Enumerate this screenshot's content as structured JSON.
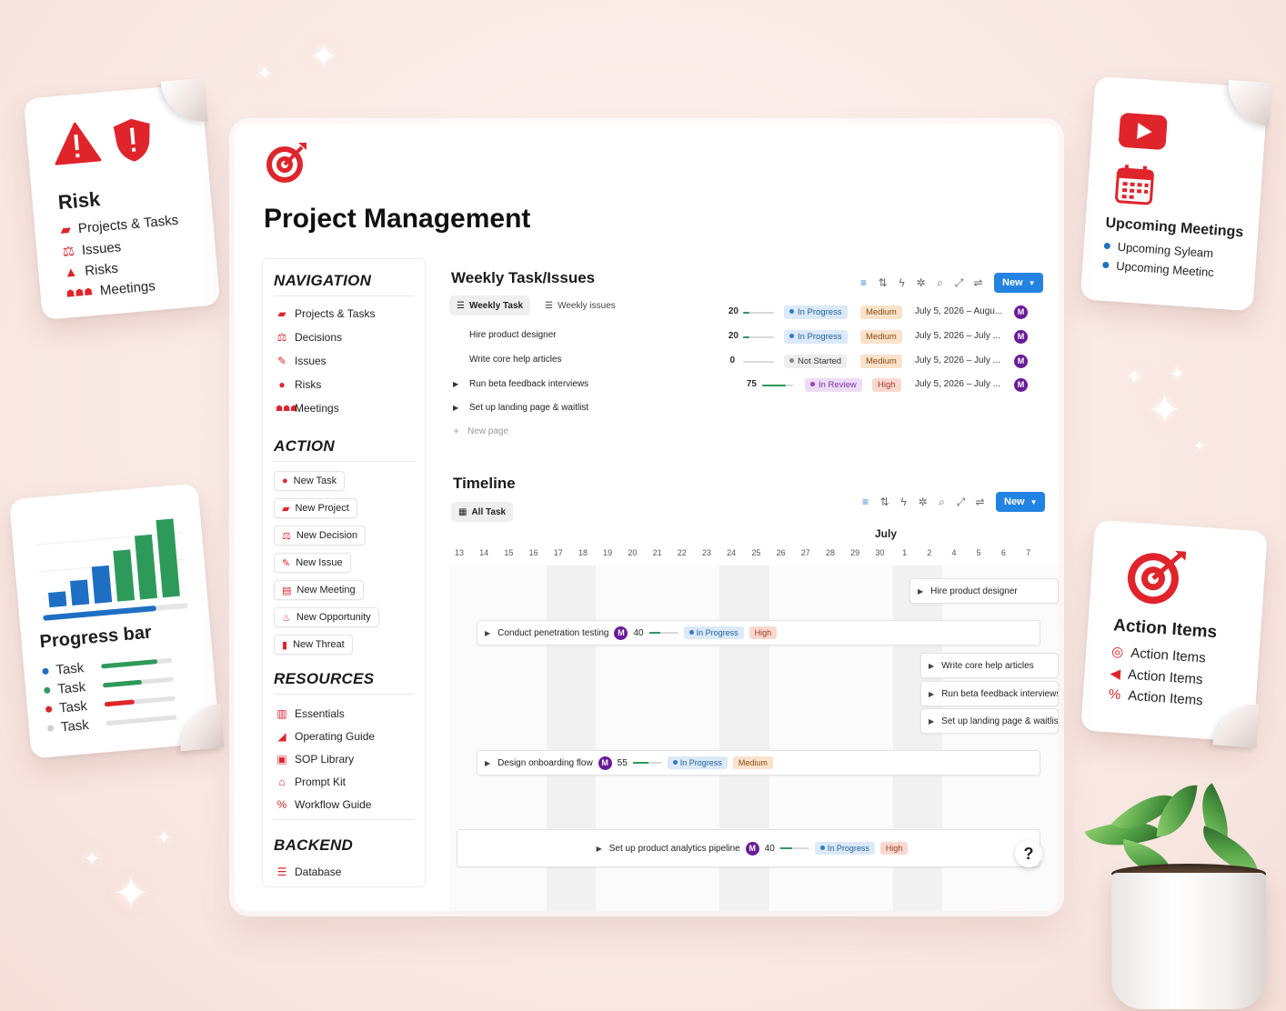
{
  "risk_card": {
    "title": "Risk",
    "items": [
      {
        "label": "Projects & Tasks",
        "icon": "briefcase-icon"
      },
      {
        "label": "Issues",
        "icon": "scales-icon"
      },
      {
        "label": "Risks",
        "icon": "warning-icon"
      },
      {
        "label": "Meetings",
        "icon": "people-icon"
      }
    ]
  },
  "progress_card": {
    "title": "Progress bar",
    "bar_heights": [
      0.18,
      0.3,
      0.45,
      0.62,
      0.78,
      0.95
    ],
    "main_progress": 0.78,
    "tasks": [
      {
        "label": "Task",
        "dot": "#1e6fc4",
        "bar": "#2d9a5a",
        "fill": 0.8
      },
      {
        "label": "Task",
        "dot": "#2d9a5a",
        "bar": "#2d9a5a",
        "fill": 0.55
      },
      {
        "label": "Task",
        "dot": "#e0242b",
        "bar": "#e0242b",
        "fill": 0.42
      },
      {
        "label": "Task",
        "dot": "#cfcfcf",
        "bar": "#d9d9d9",
        "fill": 0
      }
    ]
  },
  "meetings_card": {
    "title": "Upcoming Meetings",
    "items": [
      "Upcoming Syleam",
      "Upcoming Meetinc"
    ]
  },
  "action_card": {
    "title": "Action Items",
    "items": [
      {
        "label": "Action Items",
        "icon": "target-icon"
      },
      {
        "label": "Action Items",
        "icon": "megaphone-icon"
      },
      {
        "label": "Action Items",
        "icon": "percent-icon"
      }
    ]
  },
  "page": {
    "title": "Project Management"
  },
  "nav": {
    "navigation": {
      "title": "NAVIGATION",
      "items": [
        {
          "label": "Projects & Tasks",
          "icon": "briefcase-icon"
        },
        {
          "label": "Decisions",
          "icon": "scales-icon"
        },
        {
          "label": "Issues",
          "icon": "wrench-icon"
        },
        {
          "label": "Risks",
          "icon": "alert-icon"
        },
        {
          "label": "Meetings",
          "icon": "people-icon"
        }
      ]
    },
    "action": {
      "title": "ACTION",
      "items": [
        {
          "label": "New Task",
          "icon": "record-icon"
        },
        {
          "label": "New Project",
          "icon": "briefcase-icon"
        },
        {
          "label": "New Decision",
          "icon": "scales-icon"
        },
        {
          "label": "New Issue",
          "icon": "wrench-icon"
        },
        {
          "label": "New Meeting",
          "icon": "meeting-icon"
        },
        {
          "label": "New Opportunity",
          "icon": "flame-icon"
        },
        {
          "label": "New Threat",
          "icon": "document-icon"
        }
      ]
    },
    "resources": {
      "title": "RESOURCES",
      "items": [
        {
          "label": "Essentials",
          "icon": "book-icon"
        },
        {
          "label": "Operating Guide",
          "icon": "ruler-icon"
        },
        {
          "label": "SOP Library",
          "icon": "toolbox-icon"
        },
        {
          "label": "Prompt Kit",
          "icon": "home-icon"
        },
        {
          "label": "Workflow Guide",
          "icon": "percent-icon"
        }
      ]
    },
    "backend": {
      "title": "BACKEND",
      "items": [
        {
          "label": "Database",
          "icon": "database-icon"
        }
      ]
    }
  },
  "weekly": {
    "title": "Weekly Task/Issues",
    "tabs": [
      "Weekly Task",
      "Weekly issues"
    ],
    "new_label": "New",
    "rows": [
      {
        "name": "",
        "expandable": false,
        "progress": 20,
        "status": "In Progress",
        "priority": "Medium",
        "date": "July 5, 2026 – Augu...",
        "assignee": "M"
      },
      {
        "name": "Hire product designer",
        "expandable": false,
        "progress": 20,
        "status": "In Progress",
        "priority": "Medium",
        "date": "July 5, 2026 – July ...",
        "assignee": "M"
      },
      {
        "name": "Write core help articles",
        "expandable": false,
        "progress": 0,
        "status": "Not Started",
        "priority": "Medium",
        "date": "July 5, 2026 – July ...",
        "assignee": "M"
      },
      {
        "name": "Run beta feedback interviews",
        "expandable": true,
        "progress": 75,
        "status": "In Review",
        "priority": "High",
        "date": "July 5, 2026 – July ...",
        "assignee": "M"
      },
      {
        "name": "Set up landing page & waitlist",
        "expandable": true
      }
    ],
    "new_page": "New page"
  },
  "timeline": {
    "title": "Timeline",
    "view": "All Task",
    "new_label": "New",
    "month": "July",
    "days": [
      "13",
      "14",
      "15",
      "16",
      "17",
      "18",
      "19",
      "20",
      "21",
      "22",
      "23",
      "24",
      "25",
      "26",
      "27",
      "28",
      "29",
      "30",
      "1",
      "2",
      "4",
      "5",
      "6",
      "7"
    ],
    "bars": [
      {
        "name": "Hire product designer"
      },
      {
        "name": "Conduct penetration testing",
        "assignee": "M",
        "progress": 40,
        "status": "In Progress",
        "priority": "High"
      },
      {
        "name": "Write core help articles"
      },
      {
        "name": "Run beta feedback interviews"
      },
      {
        "name": "Set up landing page & waitlist"
      },
      {
        "name": "Design onboarding flow",
        "assignee": "M",
        "progress": 55,
        "status": "In Progress",
        "priority": "Medium"
      },
      {
        "name": "Set up product analytics pipeline",
        "assignee": "M",
        "progress": 40,
        "status": "In Progress",
        "priority": "High"
      }
    ]
  },
  "help_label": "?"
}
